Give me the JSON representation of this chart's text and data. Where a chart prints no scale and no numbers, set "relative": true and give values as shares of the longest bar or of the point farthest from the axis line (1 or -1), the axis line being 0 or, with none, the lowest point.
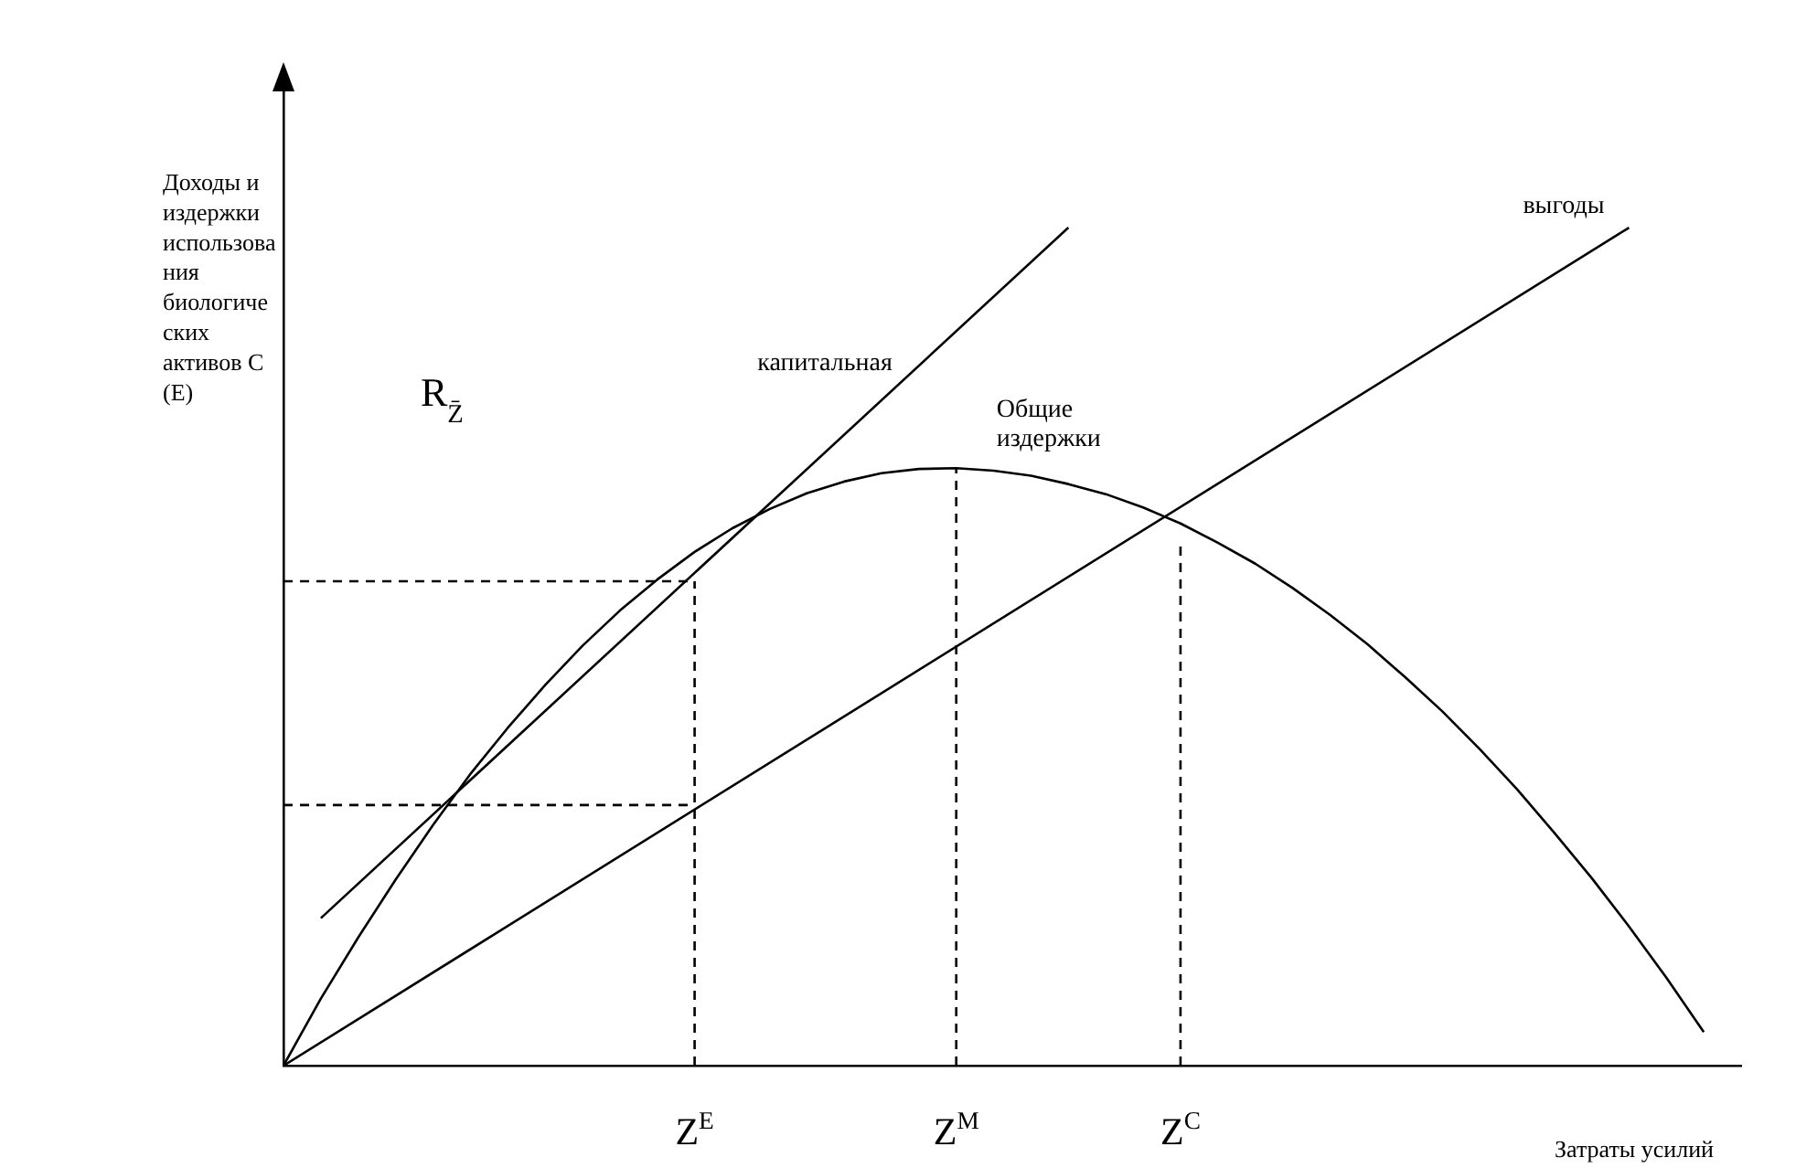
{
  "chart_data": {
    "type": "line",
    "relative": true,
    "xlabel": "Затраты усилий",
    "ylabel": "Доходы и издержки использования биологических активов С (Е)",
    "categories": [
      null,
      null,
      null,
      null,
      null,
      null,
      null,
      null,
      null,
      null,
      null,
      "Z$^{E}$",
      null,
      null,
      null,
      null,
      null,
      null,
      "Z$^{M}$",
      null,
      null,
      null,
      null,
      null,
      "Z$^{C}$",
      null,
      null,
      null,
      null,
      null,
      null,
      null,
      null,
      null,
      null,
      null,
      null,
      null,
      null,
      null
    ],
    "series": [
      {
        "name": "Общие издержки",
        "color": "#000000",
        "values": [
          0,
          0.08,
          0.153,
          0.222,
          0.287,
          0.348,
          0.403,
          0.454,
          0.501,
          0.543,
          0.58,
          0.613,
          0.641,
          0.664,
          0.683,
          0.697,
          0.707,
          0.712,
          0.713,
          0.71,
          0.704,
          0.694,
          0.682,
          0.666,
          0.647,
          0.624,
          0.599,
          0.57,
          0.538,
          0.503,
          0.464,
          0.423,
          0.378,
          0.33,
          0.278,
          0.224,
          0.166,
          0.105,
          0.04,
          null
        ]
      },
      {
        "name": "выгоды",
        "color": "#000000",
        "values": [
          0,
          null,
          null,
          null,
          null,
          null,
          null,
          null,
          null,
          null,
          null,
          null,
          null,
          null,
          null,
          null,
          null,
          null,
          null,
          null,
          null,
          null,
          null,
          null,
          null,
          null,
          null,
          null,
          null,
          null,
          null,
          null,
          null,
          null,
          null,
          null,
          1,
          null,
          null,
          null
        ]
      },
      {
        "name": "капитальная",
        "color": "#000000",
        "values": [
          null,
          0.176,
          null,
          null,
          null,
          null,
          null,
          null,
          null,
          null,
          null,
          null,
          null,
          null,
          null,
          null,
          null,
          null,
          null,
          null,
          null,
          1,
          null,
          null,
          null,
          null,
          null,
          null,
          null,
          null,
          null,
          null,
          null,
          null,
          null,
          null,
          null,
          null,
          null,
          null
        ]
      },
      {
        "color": "#000000",
        "line_style": "dashed",
        "values": [
          0.578,
          null,
          null,
          null,
          null,
          null,
          null,
          null,
          null,
          null,
          null,
          0.578,
          null,
          null,
          null,
          null,
          null,
          null,
          null,
          null,
          null,
          null,
          null,
          null,
          null,
          null,
          null,
          null,
          null,
          null,
          null,
          null,
          null,
          null,
          null,
          null,
          null,
          null,
          null,
          null
        ]
      },
      {
        "color": "#000000",
        "line_style": "dashed",
        "values": [
          0.311,
          null,
          null,
          null,
          null,
          null,
          null,
          null,
          null,
          null,
          null,
          0.311,
          null,
          null,
          null,
          null,
          null,
          null,
          null,
          null,
          null,
          null,
          null,
          null,
          null,
          null,
          null,
          null,
          null,
          null,
          null,
          null,
          null,
          null,
          null,
          null,
          null,
          null,
          null,
          null
        ]
      },
      {
        "color": "#000000",
        "line_style": "dashed",
        "x": [
          "Z$^{E}$",
          "Z$^{E}$"
        ],
        "values": [
          0,
          0.578
        ]
      },
      {
        "color": "#000000",
        "line_style": "dashed",
        "x": [
          "Z$^{M}$",
          "Z$^{M}$"
        ],
        "values": [
          0,
          0.713
        ]
      },
      {
        "color": "#000000",
        "line_style": "dashed",
        "x": [
          "Z$^{C}$",
          "Z$^{C}$"
        ],
        "values": [
          0,
          0.624
        ]
      }
    ],
    "annotations": [
      "R$_{Z̄}$"
    ],
    "marker": "none",
    "line_style": "solid",
    "grid": false,
    "legend": false
  }
}
